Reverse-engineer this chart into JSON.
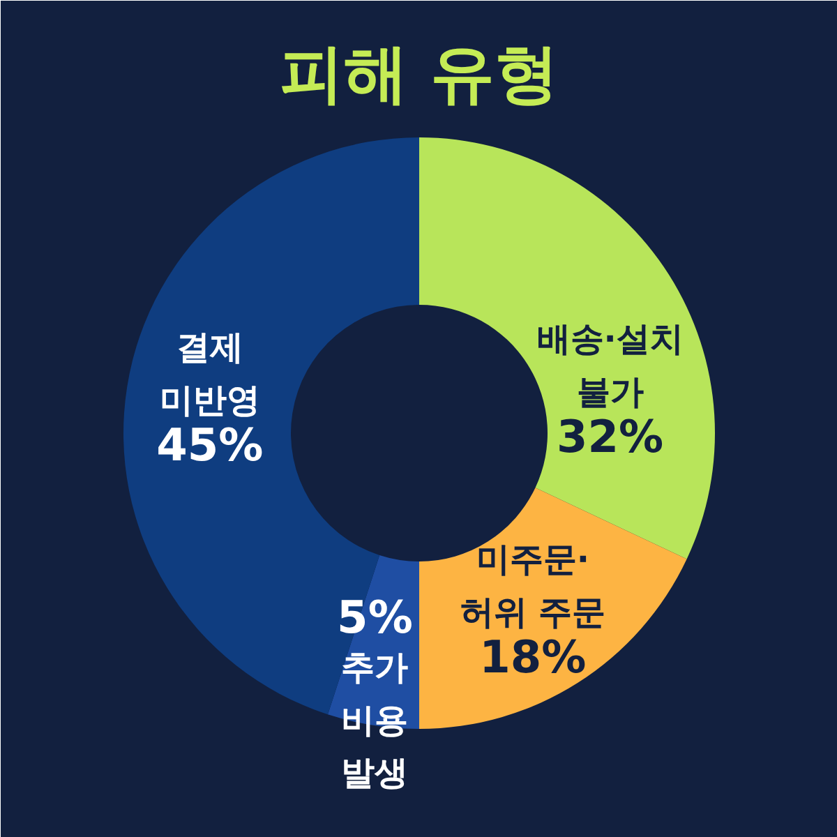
{
  "chart_data": {
    "type": "donut",
    "title": "피해 유형",
    "categories": [
      "배송·설치\n불가",
      "미주문·\n허위 주문",
      "추가\n비용\n발생",
      "결제\n미반영"
    ],
    "values": [
      32,
      18,
      5,
      45
    ],
    "colors": [
      "#b8e55a",
      "#fdb443",
      "#1f4ea3",
      "#0f3d80"
    ],
    "value_labels": [
      "32%",
      "18%",
      "5%",
      "45%"
    ]
  }
}
